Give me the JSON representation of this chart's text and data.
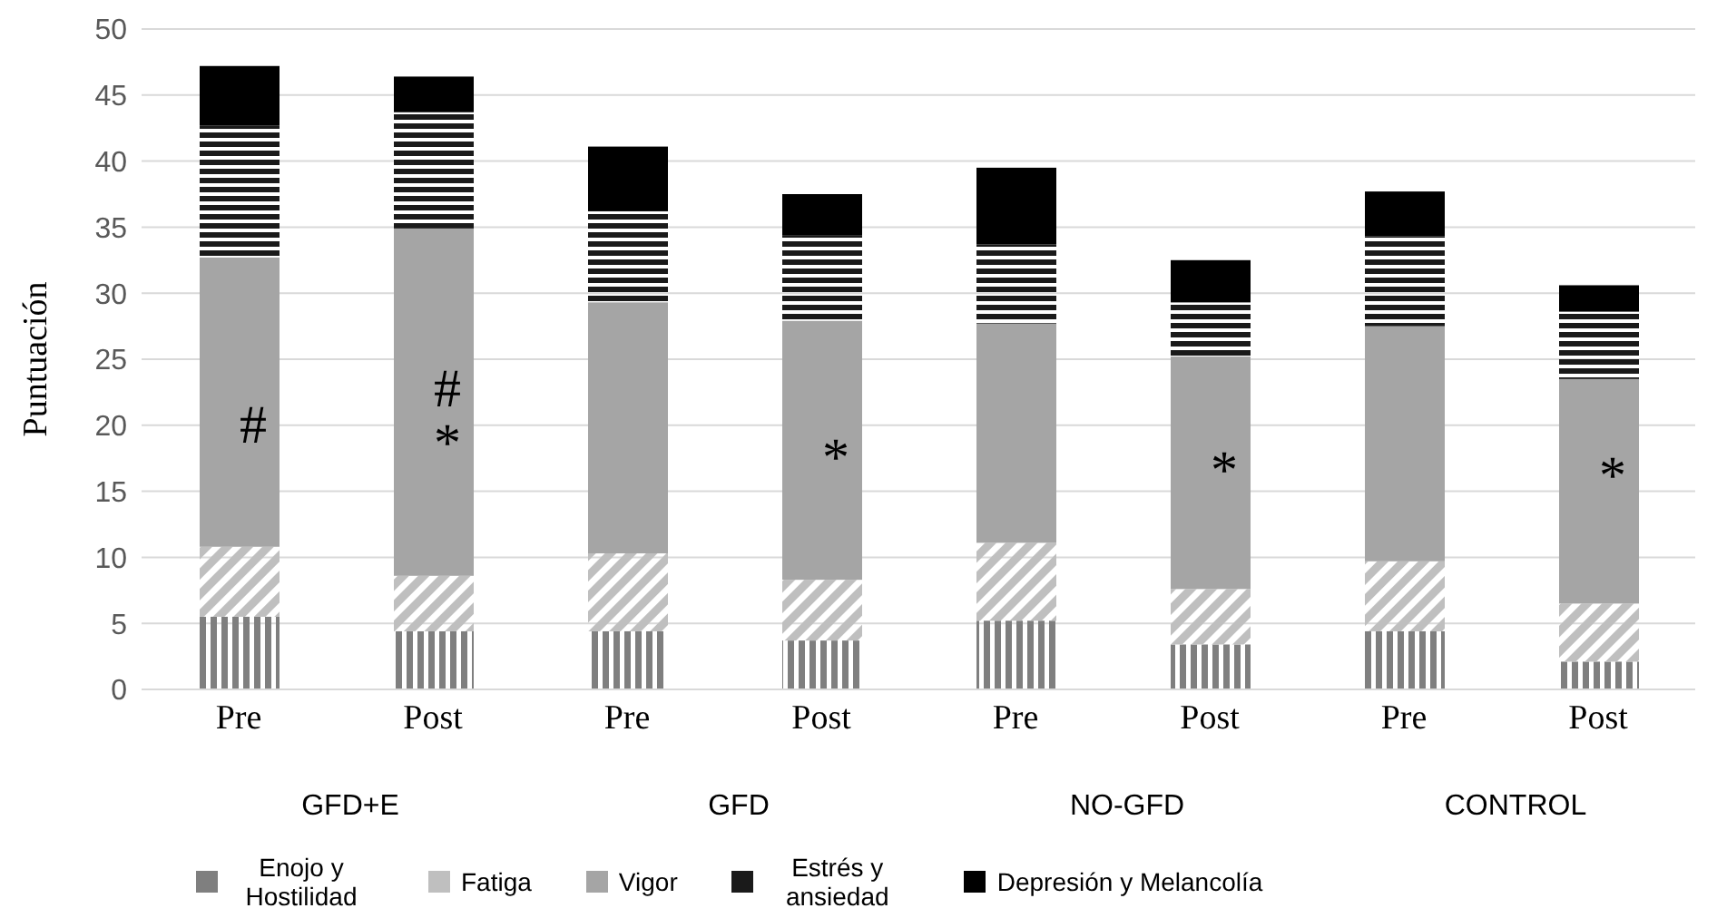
{
  "chart_data": {
    "type": "bar",
    "stacked": true,
    "ylabel": "Puntuación",
    "categories": [
      "Pre",
      "Post",
      "Pre",
      "Post",
      "Pre",
      "Post",
      "Pre",
      "Post"
    ],
    "series": [
      {
        "name": "Enojo y Hostilidad",
        "color": "#7f7f7f",
        "values": [
          5.5,
          4.4,
          4.4,
          3.7,
          5.2,
          3.4,
          4.4,
          2.1
        ]
      },
      {
        "name": "Fatiga",
        "color": "#bfbfbf",
        "values": [
          5.3,
          4.2,
          5.9,
          4.6,
          5.9,
          4.2,
          5.3,
          4.4
        ]
      },
      {
        "name": "Vigor",
        "color": "#a5a5a5",
        "values": [
          21.9,
          26.3,
          19.0,
          19.6,
          16.6,
          17.6,
          17.8,
          17.0
        ]
      },
      {
        "name": "Estrés y ansiedad",
        "color": "#1a1a1a",
        "values": [
          10.0,
          8.8,
          6.9,
          6.5,
          6.0,
          4.1,
          6.8,
          5.1
        ]
      },
      {
        "name": "Depresión y Melancolía",
        "color": "#000000",
        "values": [
          4.5,
          2.7,
          4.9,
          3.1,
          5.8,
          3.2,
          3.4,
          2.0
        ]
      }
    ],
    "ylim": [
      0,
      50
    ],
    "yticks": [
      0,
      5,
      10,
      15,
      20,
      25,
      30,
      35,
      40,
      45,
      50
    ],
    "grid": "y",
    "legend": "bottom",
    "annotations": [
      "GFD+E",
      "GFD",
      "NO-GFD",
      "CONTROL",
      "#",
      "#",
      "*",
      "*",
      "*",
      "*"
    ]
  }
}
